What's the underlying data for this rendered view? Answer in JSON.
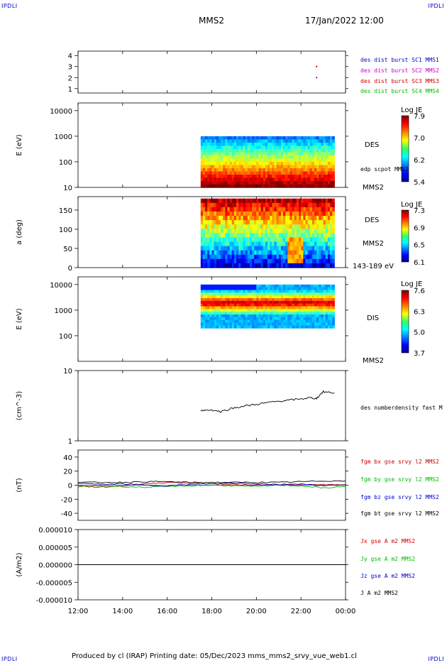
{
  "corners": {
    "tl": "IPDLI",
    "tr": "IPDLI",
    "bl": "IPDLI",
    "br": "IPDLI"
  },
  "header": {
    "spacecraft": "MMS2",
    "datetime": "17/Jan/2022 12:00"
  },
  "footer": {
    "text": "Produced by cl (IRAP)   Printing date: 05/Dec/2023   mms_mms2_srvy_vue_web1.cl"
  },
  "colors": {
    "blue": "#0000cc",
    "magenta": "#cc00cc",
    "red": "#cc0000",
    "green": "#00bb00",
    "black": "#000000"
  },
  "time_axis": {
    "ticks": [
      "12:00",
      "14:00",
      "16:00",
      "18:00",
      "20:00",
      "22:00",
      "00:00"
    ],
    "range_hours": [
      12,
      24
    ]
  },
  "chart_data": [
    {
      "type": "scatter",
      "panel": "burst availability",
      "ylabel": "",
      "y_ticks": [
        "1",
        "2",
        "3",
        "4"
      ],
      "ylim": [
        0.6,
        4.4
      ],
      "legend": [
        {
          "label": "des dist burst SC1 MMS1",
          "color": "#0000cc"
        },
        {
          "label": "des dist burst SC2 MMS2",
          "color": "#cc00cc"
        },
        {
          "label": "des dist burst SC3 MMS3",
          "color": "#cc0000"
        },
        {
          "label": "des dist burst SC4 MMS4",
          "color": "#00bb00"
        }
      ],
      "points": [
        {
          "t": 22.7,
          "y": 3,
          "color": "#cc0000"
        },
        {
          "t": 22.7,
          "y": 2,
          "color": "#cc00cc"
        }
      ]
    },
    {
      "type": "heatmap",
      "panel": "DES energy spectrogram",
      "ylabel": "E (eV)",
      "y_ticks": [
        "10",
        "100",
        "1000",
        "10000"
      ],
      "y_log": true,
      "ylim": [
        10,
        20000
      ],
      "data_t_range": [
        17.5,
        23.5
      ],
      "data_y_range": [
        10,
        1000
      ],
      "right_labels": [
        "DES",
        "edp scpot MMS2",
        "MMS2"
      ],
      "colorbar": {
        "title": "Log JE",
        "ticks": [
          "7.9",
          "7.0",
          "6.2",
          "5.4"
        ]
      }
    },
    {
      "type": "heatmap",
      "panel": "DES pitch angle",
      "ylabel": "a (deg)",
      "y_ticks": [
        "0",
        "50",
        "100",
        "150"
      ],
      "ylim": [
        0,
        185
      ],
      "data_t_range": [
        17.5,
        23.5
      ],
      "data_y_range": [
        0,
        180
      ],
      "right_labels": [
        "DES",
        "MMS2",
        "143-189 eV"
      ],
      "colorbar": {
        "title": "Log JE",
        "ticks": [
          "7.3",
          "6.9",
          "6.5",
          "6.1"
        ]
      }
    },
    {
      "type": "heatmap",
      "panel": "DIS energy spectrogram",
      "ylabel": "E (eV)",
      "y_ticks": [
        "100",
        "1000",
        "10000"
      ],
      "y_log": true,
      "ylim": [
        10,
        20000
      ],
      "data_t_range": [
        17.5,
        23.5
      ],
      "data_y_range": [
        200,
        10000
      ],
      "right_labels": [
        "DIS",
        "MMS2"
      ],
      "colorbar": {
        "title": "Log JE",
        "ticks": [
          "7.6",
          "6.3",
          "5.0",
          "3.7"
        ]
      }
    },
    {
      "type": "line",
      "panel": "density",
      "ylabel": "(cm^-3)",
      "y_ticks": [
        "1",
        "10"
      ],
      "y_log": true,
      "ylim": [
        1,
        10
      ],
      "legend": [
        {
          "label": "des numberdensity fast M",
          "color": "#000000"
        }
      ],
      "series": [
        {
          "name": "des numberdensity fast M",
          "color": "#000000",
          "t": [
            17.5,
            18.0,
            18.4,
            18.9,
            19.4,
            20.0,
            20.5,
            21.0,
            21.5,
            22.0,
            22.4,
            22.7,
            23.0,
            23.5
          ],
          "values": [
            2.7,
            2.75,
            2.6,
            2.9,
            3.1,
            3.3,
            3.5,
            3.65,
            3.8,
            3.95,
            4.1,
            4.0,
            5.0,
            4.8
          ]
        }
      ]
    },
    {
      "type": "line",
      "panel": "magnetic field",
      "ylabel": "(nT)",
      "y_ticks": [
        "-40",
        "-20",
        "0",
        "20",
        "40"
      ],
      "ylim": [
        -50,
        50
      ],
      "legend": [
        {
          "label": "fgm bx gse srvy l2 MMS2",
          "color": "#cc0000"
        },
        {
          "label": "fgm by gse srvy l2 MMS2",
          "color": "#00bb00"
        },
        {
          "label": "fgm bz gse srvy l2 MMS2",
          "color": "#0000cc"
        },
        {
          "label": "fgm bt gse srvy l2 MMS2",
          "color": "#000000"
        }
      ],
      "series": [
        {
          "name": "fgm bx gse srvy l2 MMS2",
          "color": "#cc0000",
          "t": [
            12,
            13,
            14,
            15,
            16,
            17,
            18,
            19,
            20,
            21,
            22,
            23,
            24
          ],
          "values": [
            -1,
            -3,
            -1,
            2,
            4,
            3,
            2,
            1,
            0,
            1,
            0,
            1,
            0
          ]
        },
        {
          "name": "fgm by gse srvy l2 MMS2",
          "color": "#00bb00",
          "t": [
            12,
            13,
            14,
            15,
            16,
            17,
            18,
            19,
            20,
            21,
            22,
            23,
            24
          ],
          "values": [
            -2,
            -1,
            -2,
            -3,
            -2,
            -1,
            0,
            -1,
            -2,
            0,
            -1,
            -4,
            -2
          ]
        },
        {
          "name": "fgm bz gse srvy l2 MMS2",
          "color": "#0000cc",
          "t": [
            12,
            13,
            14,
            15,
            16,
            17,
            18,
            19,
            20,
            21,
            22,
            23,
            24
          ],
          "values": [
            3,
            1,
            2,
            0,
            -1,
            1,
            2,
            3,
            2,
            1,
            2,
            -1,
            1
          ]
        },
        {
          "name": "fgm bt gse srvy l2 MMS2",
          "color": "#000000",
          "t": [
            12,
            13,
            14,
            15,
            16,
            17,
            18,
            19,
            20,
            21,
            22,
            23,
            24
          ],
          "values": [
            4,
            4,
            4,
            5,
            5,
            4,
            4,
            4,
            4,
            4,
            5,
            6,
            6
          ]
        }
      ]
    },
    {
      "type": "line",
      "panel": "current density",
      "ylabel": "(A/m2)",
      "y_ticks": [
        "-0.000010",
        "-0.000005",
        "0.000000",
        "0.000005",
        "0.000010"
      ],
      "ylim": [
        -1e-05,
        1e-05
      ],
      "legend": [
        {
          "label": "Jx gse A m2 MMS2",
          "color": "#cc0000"
        },
        {
          "label": "Jy gse A m2 MMS2",
          "color": "#00bb00"
        },
        {
          "label": "Jz gse A m2 MMS2",
          "color": "#0000cc"
        },
        {
          "label": "J A m2 MMS2",
          "color": "#000000"
        }
      ],
      "series": [
        {
          "name": "J A m2 MMS2",
          "color": "#000000",
          "t": [
            12,
            24
          ],
          "values": [
            0,
            0
          ]
        }
      ]
    }
  ]
}
